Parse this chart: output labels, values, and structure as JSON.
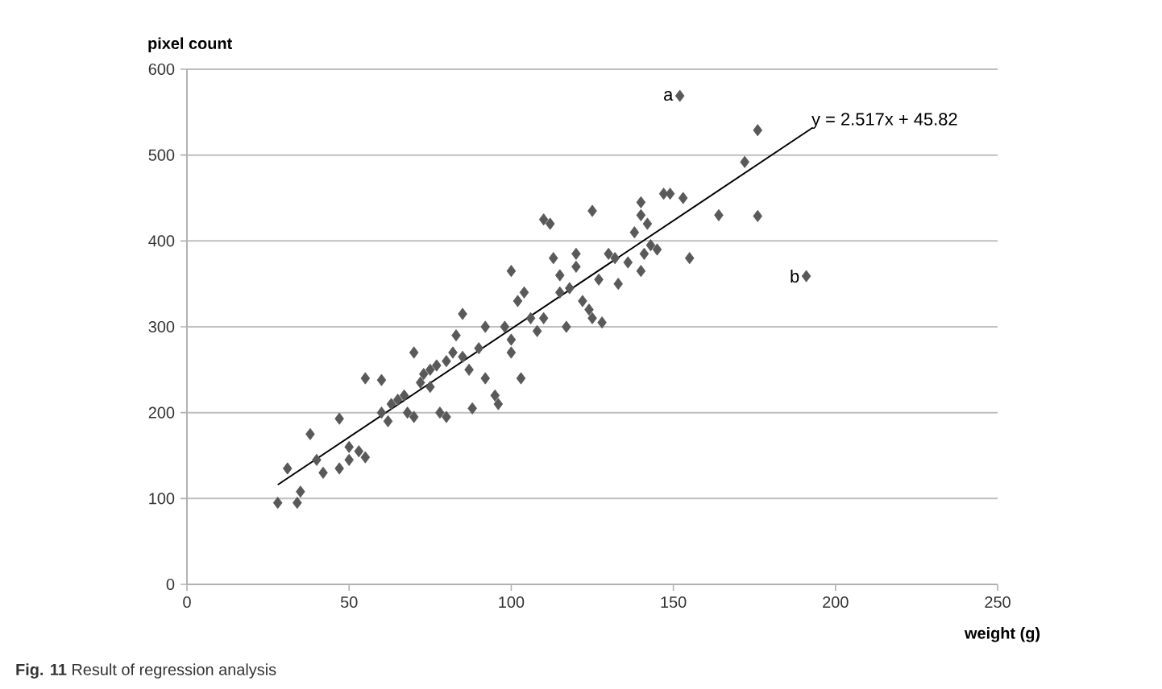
{
  "chart_data": {
    "type": "scatter",
    "xlabel": "weight (g)",
    "ylabel": "pixel count",
    "xlim": [
      0,
      250
    ],
    "xticks": [
      0,
      50,
      100,
      150,
      200,
      250
    ],
    "ylim": [
      0,
      600
    ],
    "yticks": [
      0,
      100,
      200,
      300,
      400,
      500,
      600
    ],
    "grid": "y",
    "series": [
      {
        "color": "#595959",
        "marker": "diamond",
        "x": [
          28,
          34,
          35,
          31,
          38,
          40,
          42,
          47,
          47,
          50,
          50,
          53,
          55,
          55,
          60,
          60,
          62,
          63,
          65,
          67,
          68,
          70,
          70,
          72,
          73,
          75,
          75,
          77,
          78,
          80,
          80,
          82,
          83,
          85,
          85,
          87,
          88,
          90,
          92,
          92,
          95,
          96,
          98,
          100,
          100,
          100,
          102,
          103,
          104,
          106,
          108,
          110,
          112,
          110,
          113,
          115,
          115,
          117,
          118,
          120,
          120,
          122,
          124,
          125,
          125,
          127,
          128,
          130,
          132,
          133,
          136,
          138,
          140,
          140,
          140,
          141,
          142,
          143,
          145,
          147,
          149,
          152,
          153,
          155,
          164,
          172,
          176,
          176,
          191
        ],
        "values": [
          95,
          95,
          108,
          135,
          175,
          145,
          130,
          135,
          193,
          160,
          145,
          155,
          148,
          240,
          238,
          200,
          190,
          210,
          215,
          220,
          200,
          195,
          270,
          235,
          245,
          250,
          230,
          255,
          200,
          195,
          260,
          270,
          290,
          315,
          265,
          250,
          205,
          275,
          300,
          240,
          220,
          210,
          300,
          285,
          270,
          365,
          330,
          240,
          340,
          310,
          295,
          425,
          420,
          310,
          380,
          340,
          360,
          300,
          345,
          385,
          370,
          330,
          320,
          435,
          310,
          355,
          305,
          385,
          380,
          350,
          375,
          410,
          430,
          445,
          365,
          385,
          420,
          395,
          390,
          455,
          455,
          569,
          450,
          380,
          430,
          492,
          529,
          429,
          359
        ]
      },
      {
        "type": "line",
        "marker": "none",
        "color": "#000000",
        "x": [
          28,
          193
        ],
        "values": [
          116,
          532
        ]
      }
    ],
    "annotations": [
      {
        "text": "y = 2.517x + 45.82",
        "x": 193,
        "y": 532
      },
      {
        "text": "a",
        "x": 152,
        "y": 569
      },
      {
        "text": "b",
        "x": 191,
        "y": 359
      },
      "**Fig. 11** Result of regression analysis"
    ]
  }
}
